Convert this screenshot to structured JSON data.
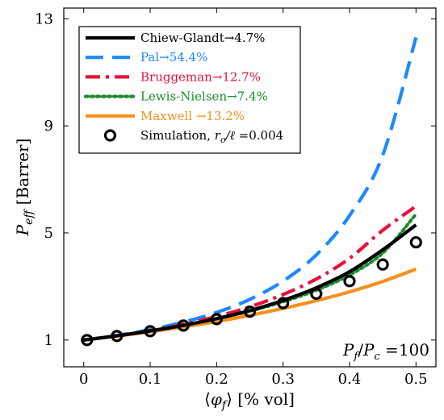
{
  "chart_data": {
    "type": "line",
    "xlabel": "⟨φf⟩ [% vol]",
    "ylabel": "Peff [Barrer]",
    "xlim": [
      -0.03,
      0.53
    ],
    "ylim": [
      0,
      13.4
    ],
    "x_ticks": [
      "0",
      "0.1",
      "0.2",
      "0.3",
      "0.4",
      "0.5"
    ],
    "y_ticks": [
      "1",
      "5",
      "9",
      "13"
    ],
    "annotation": "Pf/Pc =100",
    "grid": false,
    "legend_position": "top-left",
    "series": [
      {
        "name": "Pal→54.4%",
        "color": "#1e88ff",
        "style": "dashed",
        "x": [
          0,
          0.05,
          0.1,
          0.15,
          0.2,
          0.25,
          0.3,
          0.35,
          0.4,
          0.45,
          0.5
        ],
        "y": [
          1.0,
          1.17,
          1.39,
          1.67,
          2.03,
          2.52,
          3.2,
          4.18,
          5.65,
          7.9,
          12.3
        ]
      },
      {
        "name": "Bruggeman→12.7%",
        "color": "#e8113a",
        "style": "dashdot",
        "x": [
          0,
          0.05,
          0.1,
          0.15,
          0.2,
          0.25,
          0.3,
          0.35,
          0.4,
          0.45,
          0.5
        ],
        "y": [
          1.0,
          1.16,
          1.35,
          1.59,
          1.88,
          2.24,
          2.7,
          3.28,
          4.05,
          5.1,
          6.0
        ]
      },
      {
        "name": "Lewis-Nielsen→7.4%",
        "color": "#1a8c2a",
        "style": "dotted",
        "x": [
          0,
          0.05,
          0.1,
          0.15,
          0.2,
          0.25,
          0.3,
          0.35,
          0.4,
          0.45,
          0.5
        ],
        "y": [
          1.0,
          1.16,
          1.34,
          1.55,
          1.79,
          2.08,
          2.43,
          2.86,
          3.43,
          4.25,
          5.7
        ]
      },
      {
        "name": "Maxwell →13.2%",
        "color": "#f5901e",
        "style": "solid",
        "x": [
          0,
          0.05,
          0.1,
          0.15,
          0.2,
          0.25,
          0.3,
          0.35,
          0.4,
          0.45,
          0.5
        ],
        "y": [
          1.0,
          1.15,
          1.31,
          1.49,
          1.69,
          1.92,
          2.18,
          2.47,
          2.8,
          3.19,
          3.65
        ]
      },
      {
        "name": "Chiew-Glandt→4.7%",
        "color": "#000000",
        "style": "solid",
        "x": [
          0,
          0.05,
          0.1,
          0.15,
          0.2,
          0.25,
          0.3,
          0.35,
          0.4,
          0.45,
          0.5
        ],
        "y": [
          1.0,
          1.16,
          1.34,
          1.55,
          1.8,
          2.1,
          2.48,
          2.95,
          3.55,
          4.37,
          5.3
        ]
      },
      {
        "name": "Simulation, ro/ℓ =0.004",
        "color": "#000000",
        "style": "markers",
        "x": [
          0.005,
          0.05,
          0.1,
          0.15,
          0.2,
          0.25,
          0.3,
          0.35,
          0.4,
          0.45,
          0.5
        ],
        "y": [
          1.0,
          1.15,
          1.33,
          1.54,
          1.78,
          2.06,
          2.38,
          2.73,
          3.2,
          3.82,
          4.65
        ]
      }
    ],
    "legend_order": [
      4,
      0,
      1,
      2,
      3,
      5
    ]
  }
}
